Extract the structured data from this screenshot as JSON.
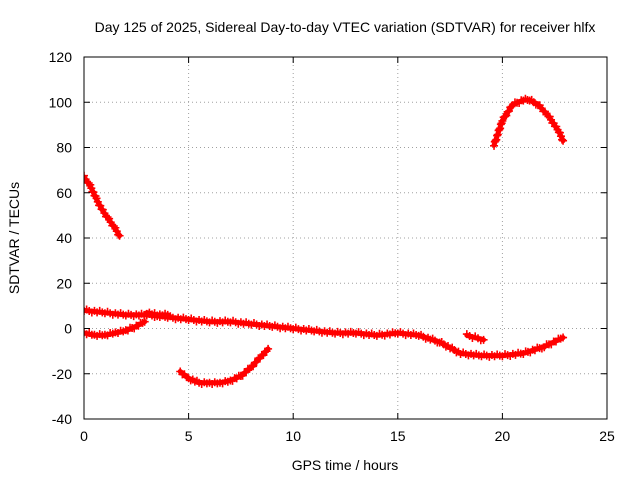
{
  "chart_data": {
    "type": "scatter",
    "title": "Day 125 of 2025, Sidereal Day-to-day VTEC variation (SDTVAR) for receiver hlfx",
    "xlabel": "GPS time / hours",
    "ylabel": "SDTVAR / TECUs",
    "xlim": [
      0,
      25
    ],
    "ylim": [
      -40,
      120
    ],
    "xticks": [
      0,
      5,
      10,
      15,
      20,
      25
    ],
    "yticks": [
      -40,
      -20,
      0,
      20,
      40,
      60,
      80,
      100,
      120
    ],
    "grid": true,
    "marker_color": "#ff0000",
    "series": [
      {
        "name": "track-1",
        "x": [
          0.0,
          0.3,
          0.6,
          0.9,
          1.2,
          1.5,
          1.7
        ],
        "y": [
          67,
          63,
          57,
          52,
          48,
          44,
          41
        ]
      },
      {
        "name": "track-2",
        "x": [
          0,
          1,
          2,
          3,
          4,
          5,
          6,
          7,
          8,
          9,
          10,
          11,
          12,
          13,
          14,
          15,
          16,
          17,
          18,
          19,
          20,
          21,
          22,
          22.9
        ],
        "y": [
          8,
          7,
          6,
          6,
          5,
          4,
          3,
          3,
          2,
          1,
          0,
          -1,
          -2,
          -2,
          -3,
          -2,
          -3,
          -6,
          -11,
          -12,
          -12,
          -11,
          -8,
          -4
        ]
      },
      {
        "name": "track-3",
        "x": [
          0,
          0.5,
          1,
          1.5,
          2,
          2.5,
          2.9
        ],
        "y": [
          -2,
          -3,
          -3,
          -2,
          -1,
          1,
          3
        ]
      },
      {
        "name": "track-4",
        "x": [
          3.0,
          3.5,
          4.0
        ],
        "y": [
          7,
          6,
          6
        ]
      },
      {
        "name": "track-5",
        "x": [
          4.6,
          5.0,
          5.5,
          6.0,
          6.5,
          7.0,
          7.5,
          8.0,
          8.5,
          8.8
        ],
        "y": [
          -19,
          -22,
          -24,
          -24,
          -24,
          -23,
          -21,
          -17,
          -12,
          -9
        ]
      },
      {
        "name": "track-6",
        "x": [
          18.3,
          18.7,
          19.1
        ],
        "y": [
          -3,
          -4,
          -5
        ]
      },
      {
        "name": "track-7",
        "x": [
          19.6,
          20.0,
          20.5,
          21.0,
          21.3,
          21.7,
          22.2,
          22.7,
          22.9
        ],
        "y": [
          81,
          92,
          99,
          101,
          101,
          99,
          94,
          87,
          83
        ]
      }
    ]
  }
}
